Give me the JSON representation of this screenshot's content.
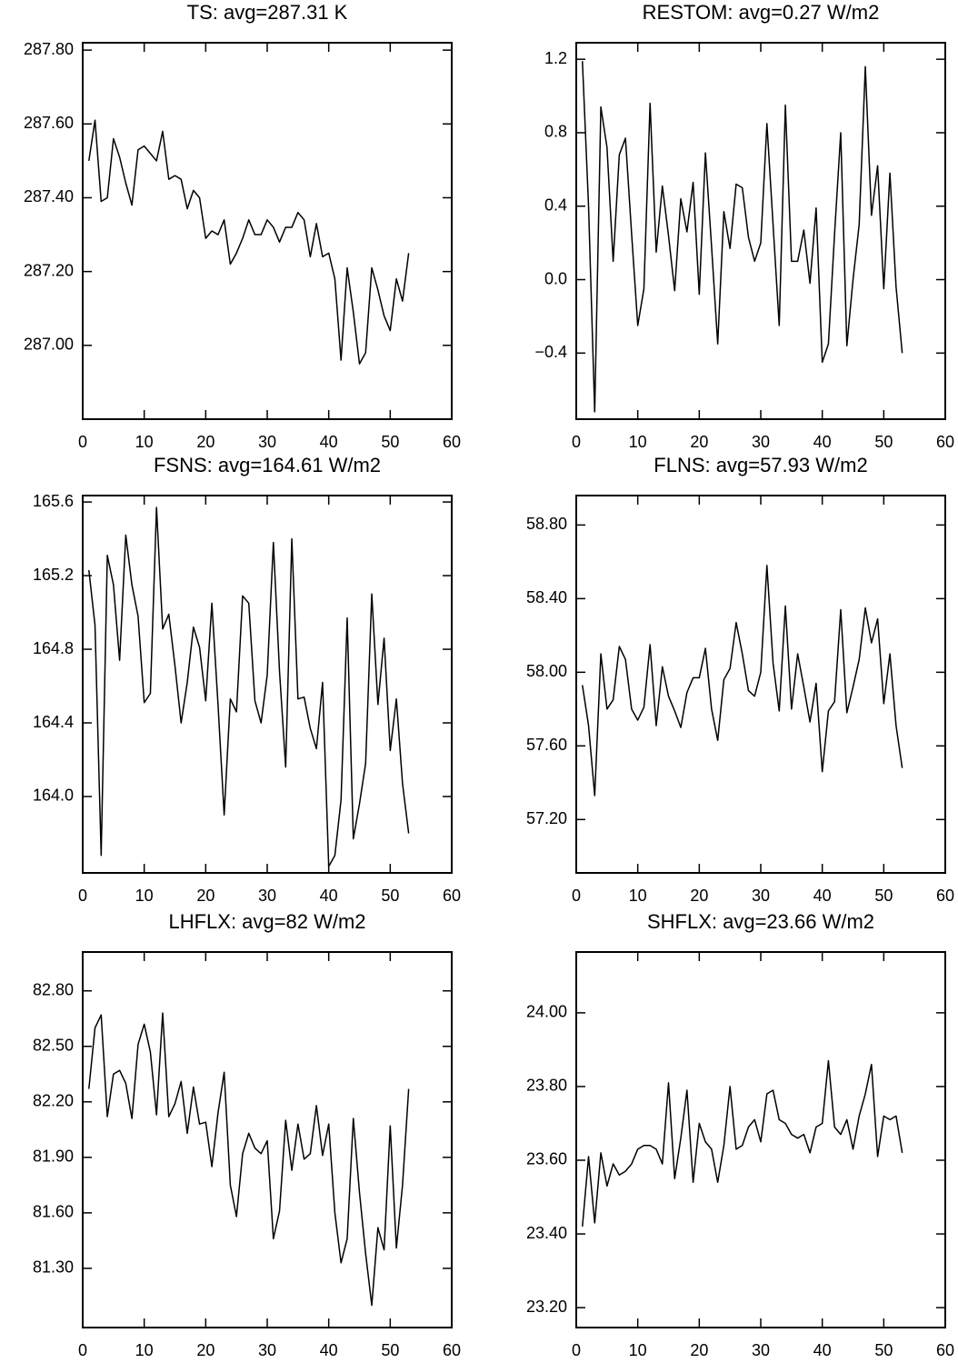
{
  "chart_data": [
    {
      "type": "line",
      "title": "TS: avg=287.31 K",
      "color": "#000000",
      "x": [
        1,
        2,
        3,
        4,
        5,
        6,
        7,
        8,
        9,
        10,
        11,
        12,
        13,
        14,
        15,
        16,
        17,
        18,
        19,
        20,
        21,
        22,
        23,
        24,
        25,
        26,
        27,
        28,
        29,
        30,
        31,
        32,
        33,
        34,
        35,
        36,
        37,
        38,
        39,
        40,
        41,
        42,
        43,
        44,
        45,
        46,
        47,
        48,
        49,
        50,
        51,
        52,
        53
      ],
      "values": [
        287.5,
        287.61,
        287.39,
        287.4,
        287.56,
        287.51,
        287.44,
        287.38,
        287.53,
        287.54,
        287.52,
        287.5,
        287.58,
        287.45,
        287.46,
        287.45,
        287.37,
        287.42,
        287.4,
        287.29,
        287.31,
        287.3,
        287.34,
        287.22,
        287.25,
        287.29,
        287.34,
        287.3,
        287.3,
        287.34,
        287.32,
        287.28,
        287.32,
        287.32,
        287.36,
        287.34,
        287.24,
        287.33,
        287.24,
        287.25,
        287.18,
        286.96,
        287.21,
        287.09,
        286.95,
        286.98,
        287.21,
        287.15,
        287.08,
        287.04,
        287.18,
        287.12,
        287.25
      ],
      "xlim": [
        0,
        60
      ],
      "xticks": [
        0,
        10,
        20,
        30,
        40,
        50,
        60
      ],
      "ylim": [
        286.8,
        287.82
      ],
      "yticks": [
        {
          "value": 287.0,
          "label": "287.00"
        },
        {
          "value": 287.2,
          "label": "287.20"
        },
        {
          "value": 287.4,
          "label": "287.40"
        },
        {
          "value": 287.6,
          "label": "287.60"
        },
        {
          "value": 287.8,
          "label": "287.80"
        }
      ]
    },
    {
      "type": "line",
      "title": "RESTOM: avg=0.27 W/m2",
      "color": "#000000",
      "x": [
        1,
        2,
        3,
        4,
        5,
        6,
        7,
        8,
        9,
        10,
        11,
        12,
        13,
        14,
        15,
        16,
        17,
        18,
        19,
        20,
        21,
        22,
        23,
        24,
        25,
        26,
        27,
        28,
        29,
        30,
        31,
        32,
        33,
        34,
        35,
        36,
        37,
        38,
        39,
        40,
        41,
        42,
        43,
        44,
        45,
        46,
        47,
        48,
        49,
        50,
        51,
        52,
        53
      ],
      "values": [
        1.19,
        0.4,
        -0.72,
        0.94,
        0.72,
        0.1,
        0.68,
        0.77,
        0.25,
        -0.25,
        -0.05,
        0.96,
        0.15,
        0.51,
        0.24,
        -0.06,
        0.44,
        0.26,
        0.53,
        -0.08,
        0.69,
        0.18,
        -0.35,
        0.37,
        0.17,
        0.52,
        0.5,
        0.23,
        0.1,
        0.2,
        0.85,
        0.3,
        -0.25,
        0.95,
        0.1,
        0.1,
        0.27,
        -0.02,
        0.39,
        -0.45,
        -0.35,
        0.25,
        0.8,
        -0.36,
        0.0,
        0.3,
        1.16,
        0.35,
        0.62,
        -0.05,
        0.58,
        -0.04,
        -0.4
      ],
      "xlim": [
        0,
        60
      ],
      "xticks": [
        0,
        10,
        20,
        30,
        40,
        50,
        60
      ],
      "ylim": [
        -0.76,
        1.29
      ],
      "yticks": [
        {
          "value": -0.4,
          "label": "−0.4"
        },
        {
          "value": 0.0,
          "label": "0.0"
        },
        0.4,
        0.8,
        1.2
      ]
    },
    {
      "type": "line",
      "title": "FSNS: avg=164.61 W/m2",
      "color": "#000000",
      "x": [
        1,
        2,
        3,
        4,
        5,
        6,
        7,
        8,
        9,
        10,
        11,
        12,
        13,
        14,
        15,
        16,
        17,
        18,
        19,
        20,
        21,
        22,
        23,
        24,
        25,
        26,
        27,
        28,
        29,
        30,
        31,
        32,
        33,
        34,
        35,
        36,
        37,
        38,
        39,
        40,
        41,
        42,
        43,
        44,
        45,
        46,
        47,
        48,
        49,
        50,
        51,
        52,
        53
      ],
      "values": [
        165.23,
        164.93,
        163.68,
        165.31,
        165.15,
        164.74,
        165.42,
        165.15,
        164.98,
        164.51,
        164.56,
        165.57,
        164.91,
        164.99,
        164.71,
        164.4,
        164.62,
        164.92,
        164.81,
        164.52,
        165.05,
        164.5,
        163.9,
        164.53,
        164.46,
        165.09,
        165.05,
        164.52,
        164.4,
        164.66,
        165.38,
        164.68,
        164.16,
        165.4,
        164.53,
        164.54,
        164.37,
        164.26,
        164.62,
        163.62,
        163.68,
        163.98,
        164.97,
        163.77,
        163.96,
        164.18,
        165.1,
        164.5,
        164.86,
        164.25,
        164.53,
        164.07,
        163.8
      ],
      "xlim": [
        0,
        60
      ],
      "xticks": [
        0,
        10,
        20,
        30,
        40,
        50,
        60
      ],
      "ylim": [
        163.585,
        165.635
      ],
      "yticks": [
        {
          "value": 164.0,
          "label": "164.0"
        },
        164.4,
        164.8,
        165.2,
        165.6
      ]
    },
    {
      "type": "line",
      "title": "FLNS: avg=57.93 W/m2",
      "color": "#000000",
      "x": [
        1,
        2,
        3,
        4,
        5,
        6,
        7,
        8,
        9,
        10,
        11,
        12,
        13,
        14,
        15,
        16,
        17,
        18,
        19,
        20,
        21,
        22,
        23,
        24,
        25,
        26,
        27,
        28,
        29,
        30,
        31,
        32,
        33,
        34,
        35,
        36,
        37,
        38,
        39,
        40,
        41,
        42,
        43,
        44,
        45,
        46,
        47,
        48,
        49,
        50,
        51,
        52,
        53
      ],
      "values": [
        57.93,
        57.71,
        57.33,
        58.1,
        57.8,
        57.85,
        58.14,
        58.07,
        57.8,
        57.74,
        57.81,
        58.15,
        57.71,
        58.03,
        57.87,
        57.79,
        57.7,
        57.89,
        57.97,
        57.97,
        58.13,
        57.8,
        57.63,
        57.96,
        58.02,
        58.27,
        58.1,
        57.9,
        57.87,
        58.0,
        58.58,
        58.05,
        57.79,
        58.36,
        57.8,
        58.1,
        57.92,
        57.73,
        57.94,
        57.46,
        57.79,
        57.84,
        58.34,
        57.78,
        57.92,
        58.07,
        58.35,
        58.16,
        58.29,
        57.83,
        58.1,
        57.71,
        57.48
      ],
      "xlim": [
        0,
        60
      ],
      "xticks": [
        0,
        10,
        20,
        30,
        40,
        50,
        60
      ],
      "ylim": [
        56.91,
        58.96
      ],
      "yticks": [
        {
          "value": 57.2,
          "label": "57.20"
        },
        {
          "value": 57.6,
          "label": "57.60"
        },
        {
          "value": 58.0,
          "label": "58.00"
        },
        {
          "value": 58.4,
          "label": "58.40"
        },
        {
          "value": 58.8,
          "label": "58.80"
        }
      ]
    },
    {
      "type": "line",
      "title": "LHFLX: avg=82 W/m2",
      "color": "#000000",
      "x": [
        1,
        2,
        3,
        4,
        5,
        6,
        7,
        8,
        9,
        10,
        11,
        12,
        13,
        14,
        15,
        16,
        17,
        18,
        19,
        20,
        21,
        22,
        23,
        24,
        25,
        26,
        27,
        28,
        29,
        30,
        31,
        32,
        33,
        34,
        35,
        36,
        37,
        38,
        39,
        40,
        41,
        42,
        43,
        44,
        45,
        46,
        47,
        48,
        49,
        50,
        51,
        52,
        53
      ],
      "values": [
        82.27,
        82.6,
        82.67,
        82.12,
        82.35,
        82.37,
        82.3,
        82.11,
        82.51,
        82.62,
        82.47,
        82.13,
        82.68,
        82.12,
        82.19,
        82.31,
        82.03,
        82.28,
        82.08,
        82.09,
        81.85,
        82.14,
        82.36,
        81.75,
        81.58,
        81.92,
        82.03,
        81.95,
        81.92,
        81.99,
        81.46,
        81.61,
        82.1,
        81.83,
        82.08,
        81.89,
        81.92,
        82.18,
        81.91,
        82.08,
        81.6,
        81.33,
        81.46,
        82.11,
        81.71,
        81.38,
        81.1,
        81.52,
        81.4,
        82.07,
        81.41,
        81.75,
        82.27
      ],
      "xlim": [
        0,
        60
      ],
      "xticks": [
        0,
        10,
        20,
        30,
        40,
        50,
        60
      ],
      "ylim": [
        80.98,
        83.01
      ],
      "yticks": [
        {
          "value": 81.3,
          "label": "81.30"
        },
        {
          "value": 81.6,
          "label": "81.60"
        },
        {
          "value": 81.9,
          "label": "81.90"
        },
        {
          "value": 82.2,
          "label": "82.20"
        },
        {
          "value": 82.5,
          "label": "82.50"
        },
        {
          "value": 82.8,
          "label": "82.80"
        }
      ]
    },
    {
      "type": "line",
      "title": "SHFLX: avg=23.66 W/m2",
      "color": "#000000",
      "x": [
        1,
        2,
        3,
        4,
        5,
        6,
        7,
        8,
        9,
        10,
        11,
        12,
        13,
        14,
        15,
        16,
        17,
        18,
        19,
        20,
        21,
        22,
        23,
        24,
        25,
        26,
        27,
        28,
        29,
        30,
        31,
        32,
        33,
        34,
        35,
        36,
        37,
        38,
        39,
        40,
        41,
        42,
        43,
        44,
        45,
        46,
        47,
        48,
        49,
        50,
        51,
        52,
        53
      ],
      "values": [
        23.42,
        23.61,
        23.43,
        23.62,
        23.53,
        23.59,
        23.56,
        23.57,
        23.59,
        23.63,
        23.64,
        23.64,
        23.63,
        23.59,
        23.81,
        23.55,
        23.66,
        23.79,
        23.54,
        23.7,
        23.65,
        23.63,
        23.54,
        23.64,
        23.8,
        23.63,
        23.64,
        23.69,
        23.71,
        23.65,
        23.78,
        23.79,
        23.71,
        23.7,
        23.67,
        23.66,
        23.67,
        23.62,
        23.69,
        23.7,
        23.87,
        23.69,
        23.67,
        23.71,
        23.63,
        23.72,
        23.78,
        23.86,
        23.61,
        23.72,
        23.71,
        23.72,
        23.62
      ],
      "xlim": [
        0,
        60
      ],
      "xticks": [
        0,
        10,
        20,
        30,
        40,
        50,
        60
      ],
      "ylim": [
        23.146,
        24.165
      ],
      "yticks": [
        {
          "value": 23.2,
          "label": "23.20"
        },
        {
          "value": 23.4,
          "label": "23.40"
        },
        {
          "value": 23.6,
          "label": "23.60"
        },
        {
          "value": 23.8,
          "label": "23.80"
        },
        {
          "value": 24.0,
          "label": "24.00"
        }
      ]
    }
  ]
}
